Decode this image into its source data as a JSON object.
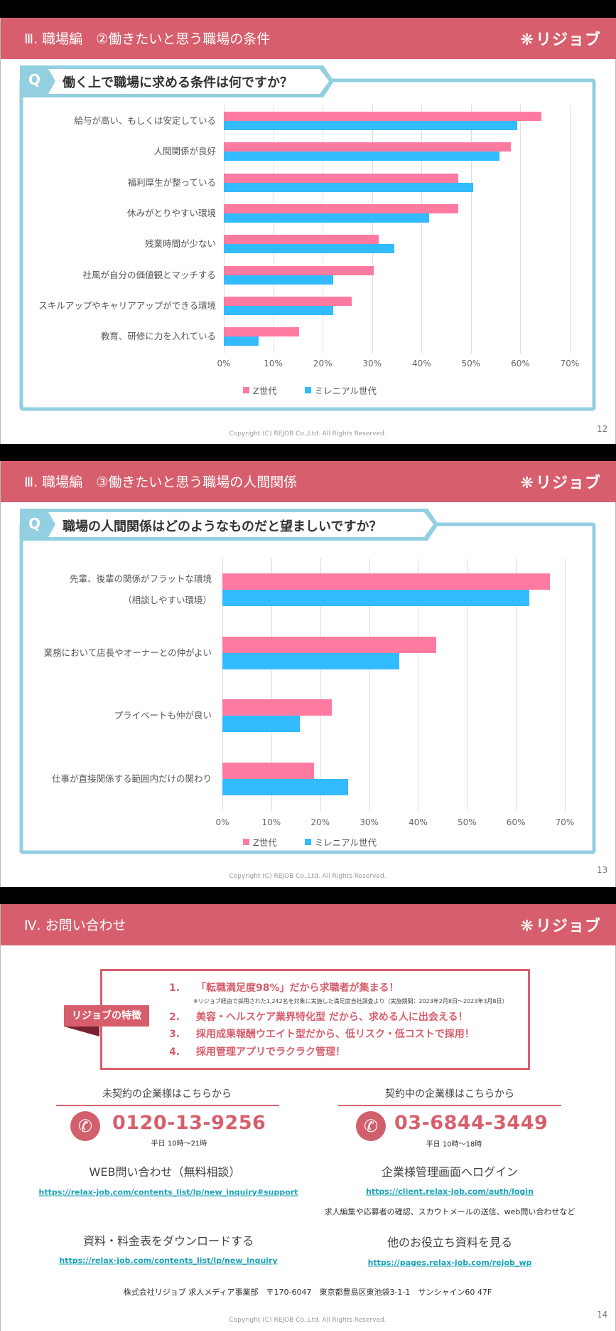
{
  "brand": {
    "logo_text": "リジョブ",
    "header_color": "#d75f6d",
    "accent_blue": "#92cfe0"
  },
  "copyright": "Copyright (C) REJOB Co.,Ltd. All Rights Reserved.",
  "slides": [
    {
      "title": "Ⅲ. 職場編　②働きたいと思う職場の条件",
      "question": "働く上で職場に求める条件は何ですか？",
      "q_label": "Q",
      "page": "12"
    },
    {
      "title": "Ⅲ. 職場編　③働きたいと思う職場の人間関係",
      "question": "職場の人間関係はどのようなものだと望ましいですか？",
      "q_label": "Q",
      "page": "13"
    },
    {
      "title": "Ⅳ. お問い合わせ",
      "page": "14",
      "badge": "リジョブの特徴",
      "features": [
        {
          "num": "1.",
          "text": "「転職満足度98%」だから求職者が集まる！"
        },
        {
          "num": "2.",
          "text": "美容・ヘルスケア業界特化型 だから、求める人に出会える！"
        },
        {
          "num": "3.",
          "text": "採用成果報酬ウエイト型だから、低リスク・低コストで採用！"
        },
        {
          "num": "4.",
          "text": "採用管理アプリでラクラク管理！"
        }
      ],
      "feature_note": "※リジョブ経由で採用された1,242名を対象に実施した満足度自社調査より（実施期間：2023年2月8日～2023年3月8日）",
      "left": {
        "heading": "未契約の企業様はこちらから",
        "phone": "0120-13-9256",
        "hours": "平日 10時～21時",
        "web_heading": "WEB問い合わせ（無料相談）",
        "web_url": "https://relax-job.com/contents_list/lp/new_inquiry#support",
        "doc_heading": "資料・料金表をダウンロードする",
        "doc_url": "https://relax-job.com/contents_list/lp/new_inquiry"
      },
      "right": {
        "heading": "契約中の企業様はこちらから",
        "phone": "03-6844-3449",
        "hours": "平日 10時～18時",
        "login_heading": "企業様管理画面へログイン",
        "login_url": "https://client.relax-job.com/auth/login",
        "login_note": "求人編集や応募者の確認、スカウトメールの送信、web問い合わせなど",
        "more_heading": "他のお役立ち資料を見る",
        "more_url": "https://pages.relax-job.com/rejob_wp"
      },
      "address": "株式会社リジョブ 求人メディア事業部　〒170-6047　東京都豊島区東池袋3-1-1　サンシャイン60 47F"
    }
  ],
  "chart_data": [
    {
      "type": "bar",
      "orientation": "horizontal",
      "categories": [
        "給与が高い、もしくは安定している",
        "人間関係が良好",
        "福利厚生が整っている",
        "休みがとりやすい環境",
        "残業時間が少ない",
        "社風が自分の価値観とマッチする",
        "スキルアップやキャリアアップができる環境",
        "教育、研修に力を入れている"
      ],
      "series": [
        {
          "name": "Z世代",
          "color": "#ff7aa1",
          "values": [
            64.2,
            58.0,
            47.4,
            47.4,
            31.3,
            30.3,
            25.9,
            15.2
          ]
        },
        {
          "name": "ミレニアル世代",
          "color": "#33bbff",
          "values": [
            59.3,
            55.7,
            50.4,
            41.6,
            34.5,
            22.1,
            22.1,
            7.0
          ]
        }
      ],
      "xlim": [
        0,
        70
      ],
      "ticks": [
        "0%",
        "10%",
        "20%",
        "30%",
        "40%",
        "50%",
        "60%",
        "70%"
      ],
      "grid": true,
      "legend": "bottom"
    },
    {
      "type": "bar",
      "orientation": "horizontal",
      "categories": [
        "先輩、後輩の関係がフラットな環境\n（相談しやすい環境）",
        "業務において店長やオーナーとの仲がよい",
        "プライベートも仲が良い",
        "仕事が直接関係する範囲内だけの関わり"
      ],
      "series": [
        {
          "name": "Z世代",
          "color": "#ff7aa1",
          "values": [
            66.9,
            43.7,
            22.3,
            18.7
          ]
        },
        {
          "name": "ミレニアル世代",
          "color": "#33bbff",
          "values": [
            62.8,
            36.2,
            15.9,
            25.7
          ]
        }
      ],
      "xlim": [
        0,
        70
      ],
      "ticks": [
        "0%",
        "10%",
        "20%",
        "30%",
        "40%",
        "50%",
        "60%",
        "70%"
      ],
      "grid": true,
      "legend": "bottom"
    }
  ]
}
